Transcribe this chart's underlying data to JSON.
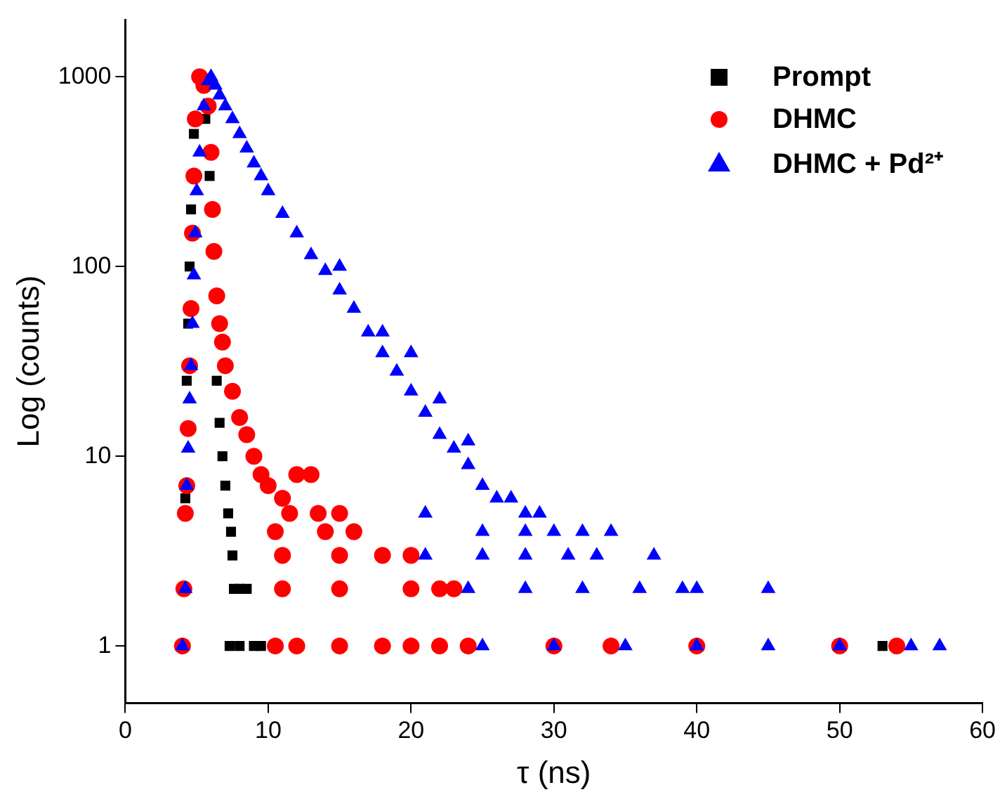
{
  "chart_data": {
    "type": "scatter",
    "xlabel": "τ (ns)",
    "ylabel": "Log (counts)",
    "log": "y",
    "xlim": [
      0,
      60
    ],
    "xticks": [
      0,
      10,
      20,
      30,
      40,
      50,
      60
    ],
    "ylim": [
      0.5,
      2000
    ],
    "yticks": [
      1,
      10,
      100,
      1000
    ],
    "grid": false,
    "legend": "top right",
    "series": [
      {
        "name": "Prompt",
        "color": "#000000",
        "marker": "square",
        "x": [
          4.2,
          4.3,
          4.4,
          4.5,
          4.6,
          4.8,
          5.6,
          5.9,
          6.4,
          6.6,
          6.8,
          7.0,
          7.2,
          7.4,
          7.5,
          7.6,
          8.0,
          8.5,
          7.3,
          8.0,
          9.0,
          9.5,
          53.0
        ],
        "values": [
          6,
          25,
          50,
          100,
          200,
          500,
          600,
          300,
          25,
          15,
          10,
          7,
          5,
          4,
          3,
          2,
          2,
          2,
          1,
          1,
          1,
          1,
          1
        ]
      },
      {
        "name": "DHMC",
        "color": "#ff0000",
        "marker": "circle",
        "x": [
          4.0,
          4.1,
          4.2,
          4.3,
          4.4,
          4.5,
          4.6,
          4.7,
          4.8,
          4.9,
          5.2,
          5.5,
          5.8,
          6.0,
          6.1,
          6.2,
          6.4,
          6.6,
          6.8,
          7.0,
          7.5,
          8.0,
          8.5,
          9.0,
          9.5,
          10.0,
          11.0,
          12.0,
          13.0,
          11.5,
          13.5,
          15.0,
          10.5,
          14.0,
          16.0,
          11.0,
          15.0,
          18.0,
          20.0,
          11.0,
          15.0,
          20.0,
          22.0,
          23.0,
          10.5,
          12.0,
          15.0,
          18.0,
          20.0,
          22.0,
          24.0,
          30.0,
          34.0,
          40.0,
          50.0,
          54.0
        ],
        "values": [
          1,
          2,
          5,
          7,
          14,
          30,
          60,
          150,
          300,
          600,
          1000,
          900,
          700,
          400,
          200,
          120,
          70,
          50,
          40,
          30,
          22,
          16,
          13,
          10,
          8,
          7,
          6,
          8,
          8,
          5,
          5,
          5,
          4,
          4,
          4,
          3,
          3,
          3,
          3,
          2,
          2,
          2,
          2,
          2,
          1,
          1,
          1,
          1,
          1,
          1,
          1,
          1,
          1,
          1,
          1,
          1
        ]
      },
      {
        "name": "DHMC + Pd²⁺",
        "color": "#0000ff",
        "marker": "triangle",
        "x": [
          4.0,
          4.2,
          4.3,
          4.4,
          4.5,
          4.6,
          4.7,
          4.8,
          4.9,
          5.0,
          5.2,
          5.5,
          5.8,
          6.0,
          6.3,
          6.6,
          7.0,
          7.5,
          8.0,
          8.5,
          9.0,
          9.5,
          10.0,
          11.0,
          12.0,
          13.0,
          14.0,
          15.0,
          16.0,
          17.0,
          18.0,
          19.0,
          20.0,
          21.0,
          22.0,
          23.0,
          24.0,
          25.0,
          26.0,
          27.0,
          28.0,
          29.0,
          15.0,
          18.0,
          20.0,
          22.0,
          24.0,
          21.0,
          25.0,
          28.0,
          30.0,
          32.0,
          34.0,
          21.0,
          25.0,
          28.0,
          31.0,
          33.0,
          37.0,
          24.0,
          28.0,
          32.0,
          36.0,
          39.0,
          40.0,
          45.0,
          25.0,
          30.0,
          35.0,
          40.0,
          45.0,
          50.0,
          55.0,
          57.0
        ],
        "values": [
          1,
          2,
          7,
          11,
          20,
          30,
          50,
          90,
          150,
          250,
          400,
          700,
          950,
          1000,
          900,
          800,
          700,
          600,
          500,
          420,
          350,
          300,
          250,
          190,
          150,
          115,
          95,
          75,
          60,
          45,
          35,
          28,
          22,
          17,
          13,
          11,
          9,
          7,
          6,
          6,
          5,
          5,
          100,
          45,
          35,
          20,
          12,
          5,
          4,
          4,
          4,
          4,
          4,
          3,
          3,
          3,
          3,
          3,
          3,
          2,
          2,
          2,
          2,
          2,
          2,
          2,
          1,
          1,
          1,
          1,
          1,
          1,
          1,
          1
        ]
      }
    ]
  }
}
